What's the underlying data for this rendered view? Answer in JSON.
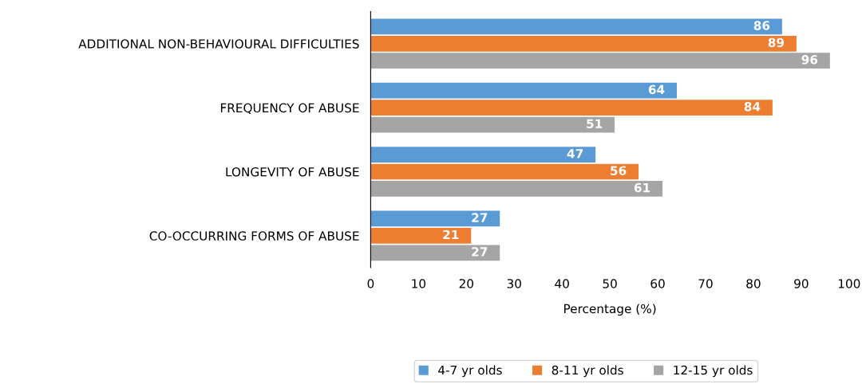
{
  "chart_data": {
    "type": "bar",
    "orientation": "horizontal",
    "xlabel": "Percentage (%)",
    "categories": [
      "ADDITIONAL NON-BEHAVIOURAL DIFFICULTIES",
      "FREQUENCY OF ABUSE",
      "LONGEVITY OF ABUSE",
      "CO-OCCURRING FORMS OF ABUSE"
    ],
    "series": [
      {
        "name": "4-7 yr olds",
        "color": "#5b9bd5",
        "values": [
          86,
          64,
          47,
          27
        ]
      },
      {
        "name": "8-11 yr olds",
        "color": "#ed7d31",
        "values": [
          89,
          84,
          56,
          21
        ]
      },
      {
        "name": "12-15 yr olds",
        "color": "#a5a5a5",
        "values": [
          96,
          51,
          61,
          27
        ]
      }
    ],
    "xlim": [
      0,
      100
    ],
    "xticks": [
      0,
      10,
      20,
      30,
      40,
      50,
      60,
      70,
      80,
      90,
      100
    ],
    "data_labels": true,
    "grid": false,
    "legend": "bottom"
  }
}
